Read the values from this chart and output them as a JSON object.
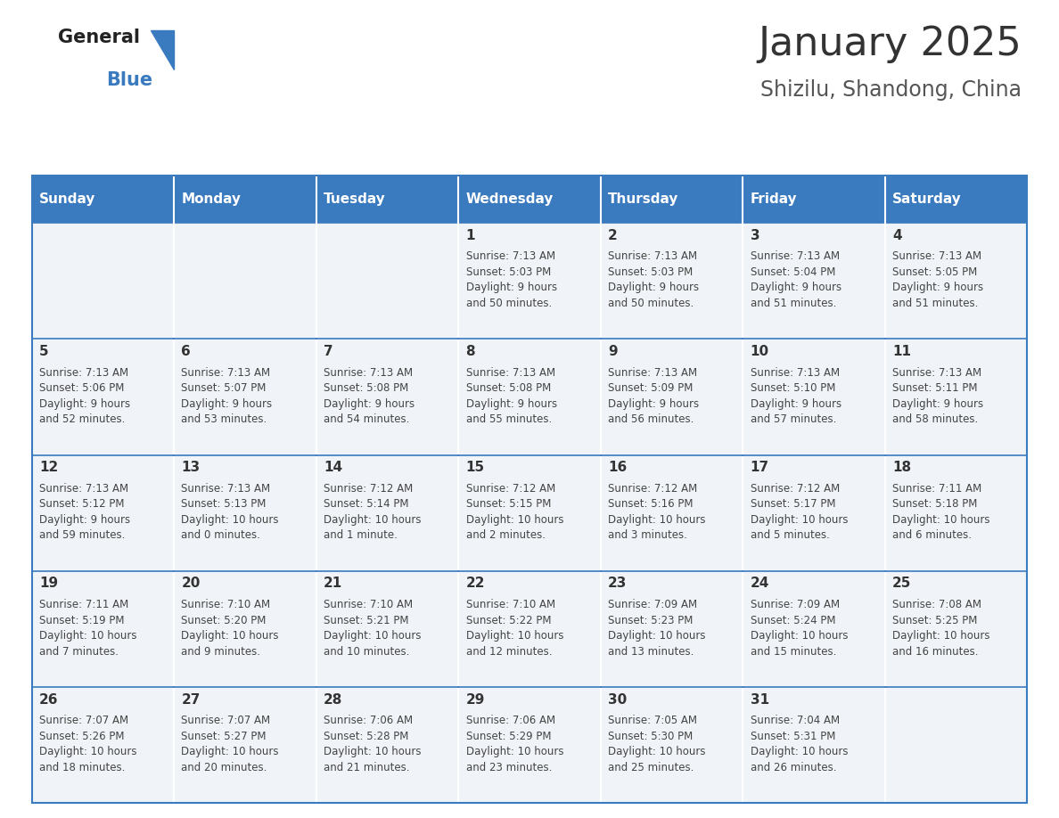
{
  "title": "January 2025",
  "subtitle": "Shizilu, Shandong, China",
  "header_color": "#3a7abf",
  "header_text_color": "#ffffff",
  "cell_bg_color": "#f0f4f8",
  "empty_cell_bg": "#f0f4f8",
  "border_color": "#3a7abf",
  "days_of_week": [
    "Sunday",
    "Monday",
    "Tuesday",
    "Wednesday",
    "Thursday",
    "Friday",
    "Saturday"
  ],
  "calendar_data": [
    [
      {
        "day": "",
        "info": ""
      },
      {
        "day": "",
        "info": ""
      },
      {
        "day": "",
        "info": ""
      },
      {
        "day": "1",
        "info": "Sunrise: 7:13 AM\nSunset: 5:03 PM\nDaylight: 9 hours\nand 50 minutes."
      },
      {
        "day": "2",
        "info": "Sunrise: 7:13 AM\nSunset: 5:03 PM\nDaylight: 9 hours\nand 50 minutes."
      },
      {
        "day": "3",
        "info": "Sunrise: 7:13 AM\nSunset: 5:04 PM\nDaylight: 9 hours\nand 51 minutes."
      },
      {
        "day": "4",
        "info": "Sunrise: 7:13 AM\nSunset: 5:05 PM\nDaylight: 9 hours\nand 51 minutes."
      }
    ],
    [
      {
        "day": "5",
        "info": "Sunrise: 7:13 AM\nSunset: 5:06 PM\nDaylight: 9 hours\nand 52 minutes."
      },
      {
        "day": "6",
        "info": "Sunrise: 7:13 AM\nSunset: 5:07 PM\nDaylight: 9 hours\nand 53 minutes."
      },
      {
        "day": "7",
        "info": "Sunrise: 7:13 AM\nSunset: 5:08 PM\nDaylight: 9 hours\nand 54 minutes."
      },
      {
        "day": "8",
        "info": "Sunrise: 7:13 AM\nSunset: 5:08 PM\nDaylight: 9 hours\nand 55 minutes."
      },
      {
        "day": "9",
        "info": "Sunrise: 7:13 AM\nSunset: 5:09 PM\nDaylight: 9 hours\nand 56 minutes."
      },
      {
        "day": "10",
        "info": "Sunrise: 7:13 AM\nSunset: 5:10 PM\nDaylight: 9 hours\nand 57 minutes."
      },
      {
        "day": "11",
        "info": "Sunrise: 7:13 AM\nSunset: 5:11 PM\nDaylight: 9 hours\nand 58 minutes."
      }
    ],
    [
      {
        "day": "12",
        "info": "Sunrise: 7:13 AM\nSunset: 5:12 PM\nDaylight: 9 hours\nand 59 minutes."
      },
      {
        "day": "13",
        "info": "Sunrise: 7:13 AM\nSunset: 5:13 PM\nDaylight: 10 hours\nand 0 minutes."
      },
      {
        "day": "14",
        "info": "Sunrise: 7:12 AM\nSunset: 5:14 PM\nDaylight: 10 hours\nand 1 minute."
      },
      {
        "day": "15",
        "info": "Sunrise: 7:12 AM\nSunset: 5:15 PM\nDaylight: 10 hours\nand 2 minutes."
      },
      {
        "day": "16",
        "info": "Sunrise: 7:12 AM\nSunset: 5:16 PM\nDaylight: 10 hours\nand 3 minutes."
      },
      {
        "day": "17",
        "info": "Sunrise: 7:12 AM\nSunset: 5:17 PM\nDaylight: 10 hours\nand 5 minutes."
      },
      {
        "day": "18",
        "info": "Sunrise: 7:11 AM\nSunset: 5:18 PM\nDaylight: 10 hours\nand 6 minutes."
      }
    ],
    [
      {
        "day": "19",
        "info": "Sunrise: 7:11 AM\nSunset: 5:19 PM\nDaylight: 10 hours\nand 7 minutes."
      },
      {
        "day": "20",
        "info": "Sunrise: 7:10 AM\nSunset: 5:20 PM\nDaylight: 10 hours\nand 9 minutes."
      },
      {
        "day": "21",
        "info": "Sunrise: 7:10 AM\nSunset: 5:21 PM\nDaylight: 10 hours\nand 10 minutes."
      },
      {
        "day": "22",
        "info": "Sunrise: 7:10 AM\nSunset: 5:22 PM\nDaylight: 10 hours\nand 12 minutes."
      },
      {
        "day": "23",
        "info": "Sunrise: 7:09 AM\nSunset: 5:23 PM\nDaylight: 10 hours\nand 13 minutes."
      },
      {
        "day": "24",
        "info": "Sunrise: 7:09 AM\nSunset: 5:24 PM\nDaylight: 10 hours\nand 15 minutes."
      },
      {
        "day": "25",
        "info": "Sunrise: 7:08 AM\nSunset: 5:25 PM\nDaylight: 10 hours\nand 16 minutes."
      }
    ],
    [
      {
        "day": "26",
        "info": "Sunrise: 7:07 AM\nSunset: 5:26 PM\nDaylight: 10 hours\nand 18 minutes."
      },
      {
        "day": "27",
        "info": "Sunrise: 7:07 AM\nSunset: 5:27 PM\nDaylight: 10 hours\nand 20 minutes."
      },
      {
        "day": "28",
        "info": "Sunrise: 7:06 AM\nSunset: 5:28 PM\nDaylight: 10 hours\nand 21 minutes."
      },
      {
        "day": "29",
        "info": "Sunrise: 7:06 AM\nSunset: 5:29 PM\nDaylight: 10 hours\nand 23 minutes."
      },
      {
        "day": "30",
        "info": "Sunrise: 7:05 AM\nSunset: 5:30 PM\nDaylight: 10 hours\nand 25 minutes."
      },
      {
        "day": "31",
        "info": "Sunrise: 7:04 AM\nSunset: 5:31 PM\nDaylight: 10 hours\nand 26 minutes."
      },
      {
        "day": "",
        "info": ""
      }
    ]
  ],
  "logo_general_color": "#222222",
  "logo_blue_color": "#3a7abf",
  "title_color": "#333333",
  "subtitle_color": "#555555",
  "day_number_color": "#333333",
  "info_text_color": "#444444",
  "background_color": "#ffffff",
  "fig_width": 11.88,
  "fig_height": 9.18,
  "dpi": 100
}
